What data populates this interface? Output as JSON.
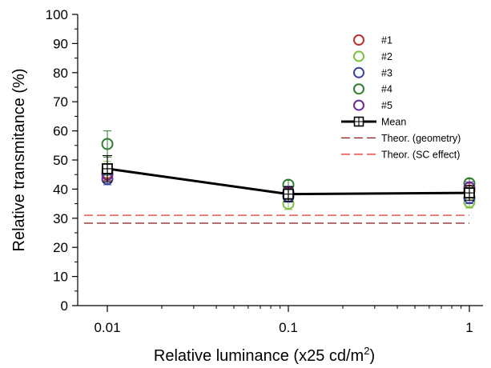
{
  "chart_data": {
    "type": "scatter",
    "xlabel": "Relative luminance (x25 cd/m",
    "xlabel_superscript": "2",
    "xlabel_suffix": ")",
    "ylabel": "Relative transmitance (%)",
    "xscale": "log",
    "xlim": [
      0.01,
      1
    ],
    "ylim": [
      0,
      100
    ],
    "x_ticks": [
      0.01,
      0.1,
      1
    ],
    "x_tick_labels": [
      "0.01",
      "0.1",
      "1"
    ],
    "y_ticks": [
      0,
      10,
      20,
      30,
      40,
      50,
      60,
      70,
      80,
      90,
      100
    ],
    "y_tick_labels": [
      "0",
      "10",
      "20",
      "30",
      "40",
      "50",
      "60",
      "70",
      "80",
      "90",
      "100"
    ],
    "grid": false,
    "legend_position": "top-right",
    "x": [
      0.01,
      0.1,
      1
    ],
    "series": [
      {
        "name": "#1",
        "color": "#c0302f",
        "marker": "circle",
        "values": [
          45.5,
          38.5,
          39.5
        ],
        "error": [
          2.5,
          2,
          2.5
        ]
      },
      {
        "name": "#2",
        "color": "#7cc142",
        "marker": "circle",
        "values": [
          46.5,
          35.0,
          35.5
        ],
        "error": [
          3,
          2,
          2
        ]
      },
      {
        "name": "#3",
        "color": "#3a3fa0",
        "marker": "circle",
        "values": [
          43.5,
          37.5,
          37.0
        ],
        "error": [
          2,
          2,
          2
        ]
      },
      {
        "name": "#4",
        "color": "#2e7d32",
        "marker": "circle",
        "values": [
          55.5,
          41.5,
          42.0
        ],
        "error": [
          4.5,
          1.5,
          1.5
        ]
      },
      {
        "name": "#5",
        "color": "#6a2c8f",
        "marker": "circle",
        "values": [
          45.0,
          39.0,
          40.5
        ],
        "error": [
          2.5,
          2,
          2
        ]
      },
      {
        "name": "Mean",
        "color": "#000000",
        "marker": "square-cross",
        "line": "solid",
        "values": [
          47.0,
          38.3,
          38.7
        ],
        "error": [
          4.5,
          2.5,
          2.5
        ]
      },
      {
        "name": "Theor. (geometry)",
        "color": "#8b1a1a",
        "line": "dashed",
        "values": [
          28.3,
          28.3,
          28.3
        ]
      },
      {
        "name": "Theor. (SC effect)",
        "color": "#e03a2f",
        "line": "dashed",
        "values": [
          31.0,
          31.0,
          31.0
        ]
      }
    ]
  }
}
